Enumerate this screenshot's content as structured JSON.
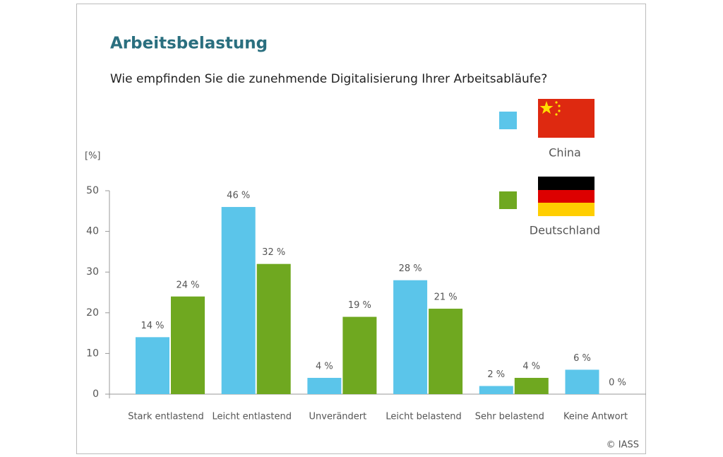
{
  "chart_data": {
    "type": "bar",
    "title": "Arbeitsbelastung",
    "subtitle": "Wie empfinden Sie die zunehmende Digitalisierung Ihrer Arbeitsabläufe?",
    "y_label": "[%]",
    "categories": [
      "Stark entlastend",
      "Leicht entlastend",
      "Unverändert",
      "Leicht belastend",
      "Sehr belastend",
      "Keine Antwort"
    ],
    "series": [
      {
        "name": "China",
        "color": "#5bc5ea",
        "values": [
          14,
          46,
          4,
          28,
          2,
          6
        ],
        "value_labels": [
          "14 %",
          "46 %",
          "4 %",
          "28 %",
          "2 %",
          "6 %"
        ]
      },
      {
        "name": "Deutschland",
        "color": "#6fa820",
        "values": [
          24,
          32,
          19,
          21,
          4,
          0
        ],
        "value_labels": [
          "24 %",
          "32 %",
          "19 %",
          "21 %",
          "4 %",
          "0 %"
        ]
      }
    ],
    "ylim": [
      0,
      50
    ],
    "yticks": [
      0,
      10,
      20,
      30,
      40,
      50
    ],
    "grid": false,
    "credit": "© IASS"
  }
}
